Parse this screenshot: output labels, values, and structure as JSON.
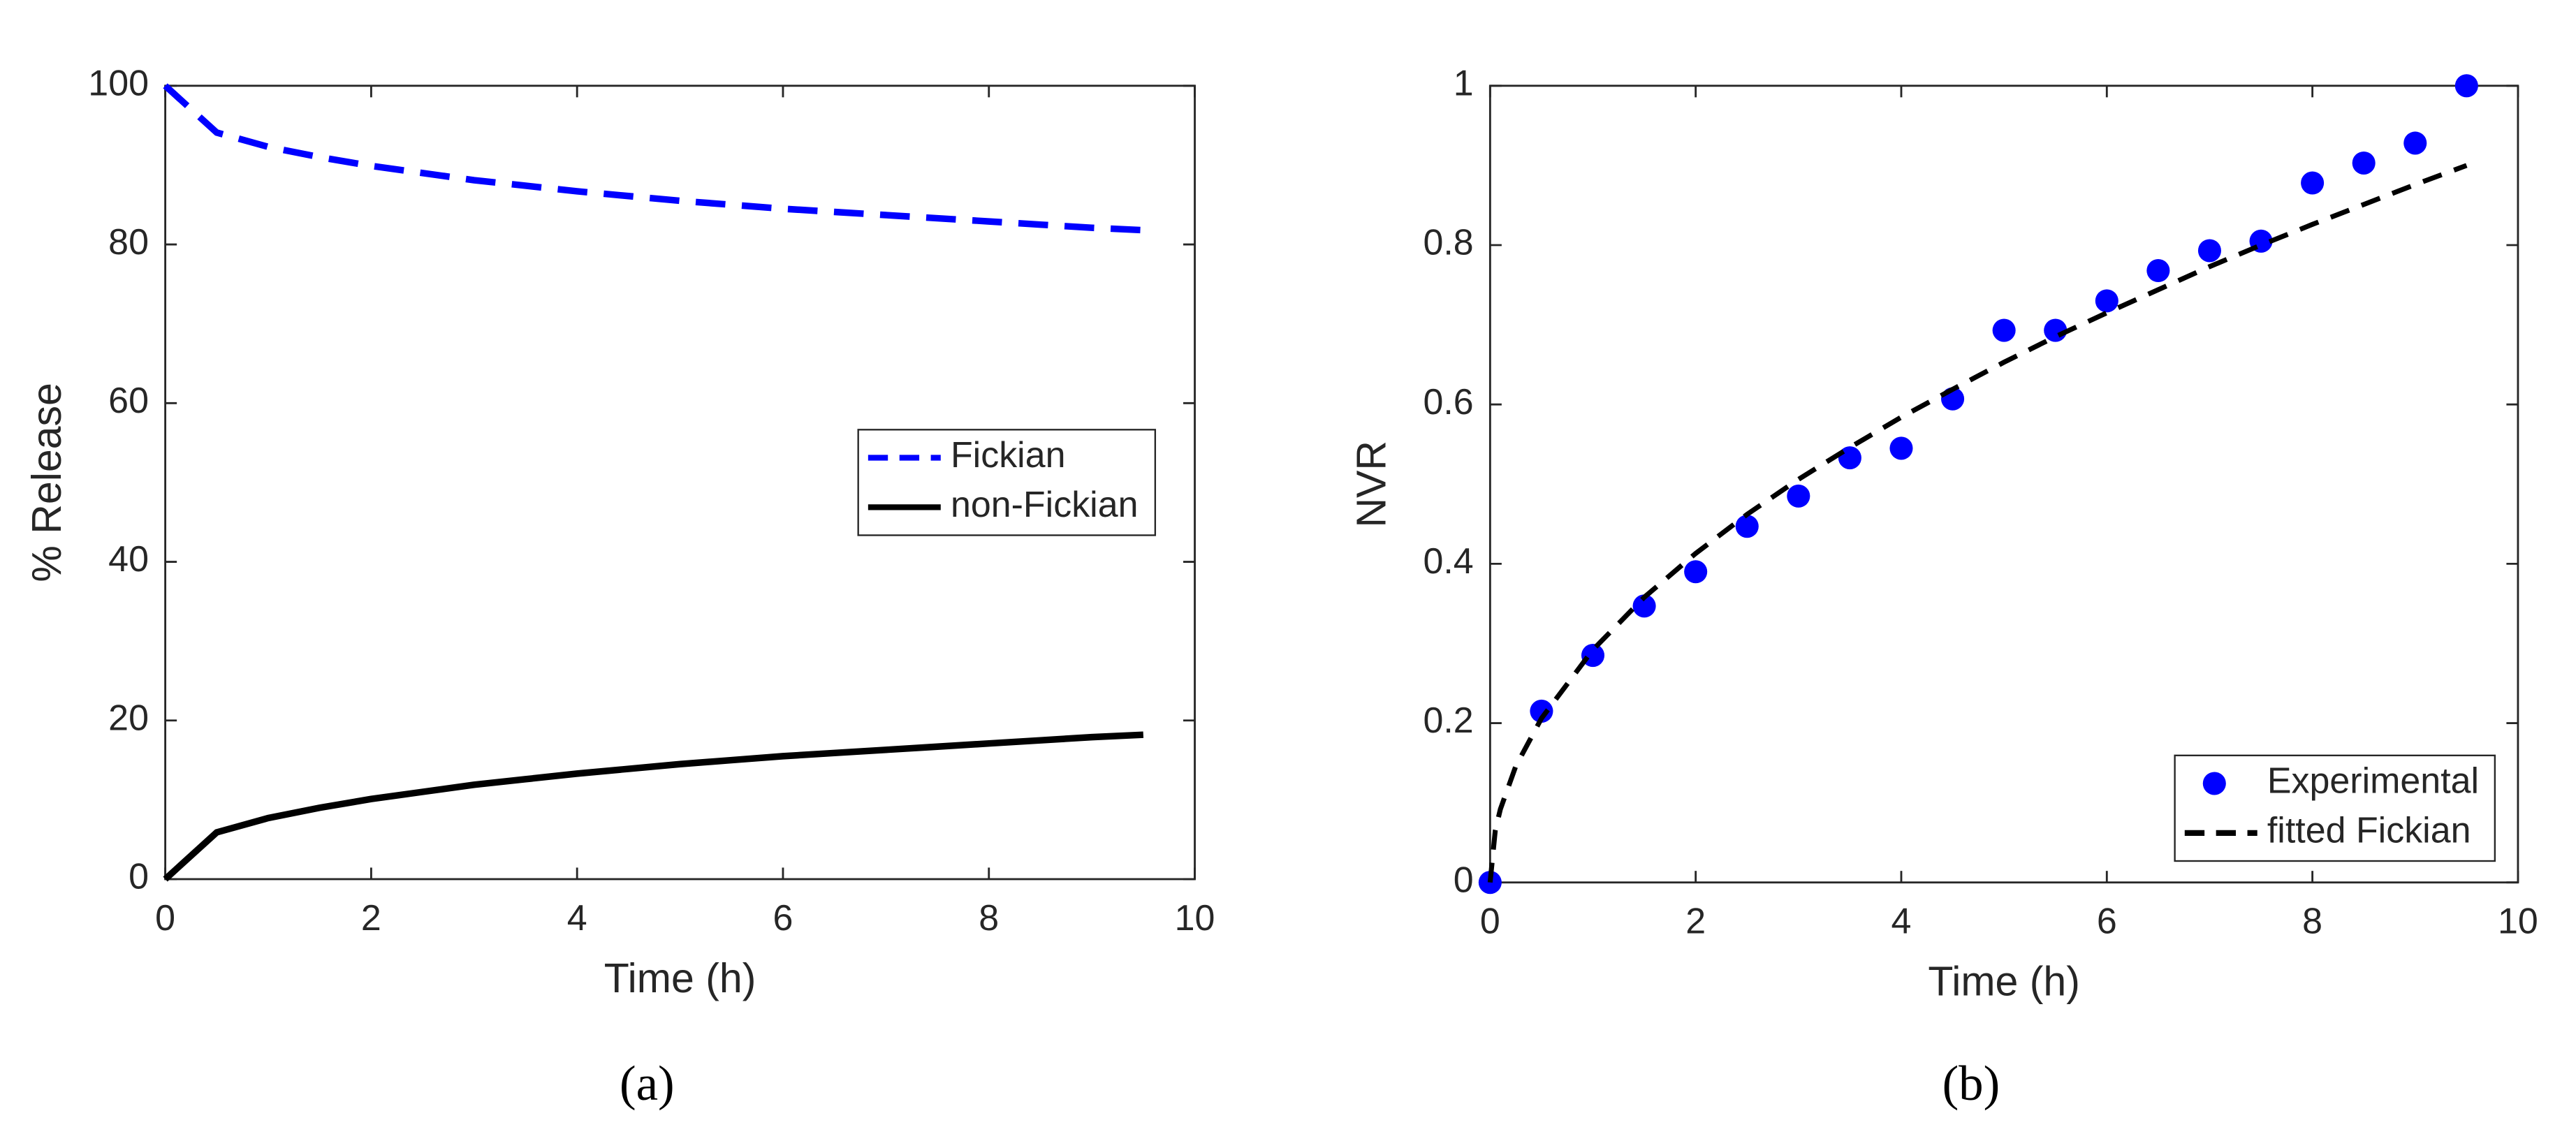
{
  "chart_data": [
    {
      "type": "line",
      "caption": "(a)",
      "xlabel": "Time (h)",
      "ylabel": "% Release",
      "x": [
        0,
        0.5,
        1,
        1.5,
        2,
        2.5,
        3,
        3.5,
        4,
        4.5,
        5,
        5.5,
        6,
        6.5,
        7,
        7.5,
        8,
        8.5,
        9,
        9.5
      ],
      "series": [
        {
          "name": "Fickian",
          "color": "#0000ff",
          "dashed": true,
          "values": [
            100,
            94.1,
            92.3,
            91.0,
            89.9,
            89.0,
            88.1,
            87.4,
            86.7,
            86.1,
            85.5,
            85.0,
            84.5,
            84.1,
            83.7,
            83.3,
            82.9,
            82.5,
            82.1,
            81.8
          ]
        },
        {
          "name": "non-Fickian",
          "color": "#000000",
          "dashed": false,
          "values": [
            0,
            5.9,
            7.7,
            9.0,
            10.1,
            11.0,
            11.9,
            12.6,
            13.3,
            13.9,
            14.5,
            15.0,
            15.5,
            15.9,
            16.3,
            16.7,
            17.1,
            17.5,
            17.9,
            18.2
          ]
        }
      ],
      "xlim": [
        0,
        10
      ],
      "xticks": [
        0,
        2,
        4,
        6,
        8,
        10
      ],
      "ylim": [
        0,
        100
      ],
      "yticks": [
        0,
        20,
        40,
        60,
        80,
        100
      ],
      "legend": "east"
    },
    {
      "type": "scatter",
      "caption": "(b)",
      "xlabel": "Time (h)",
      "ylabel": "NVR",
      "series": [
        {
          "name": "Experimental",
          "color": "#0000ff",
          "mark": "marker",
          "x": [
            0,
            0.5,
            1,
            1.5,
            2,
            2.5,
            3,
            3.5,
            4,
            4.5,
            5,
            5.5,
            6,
            6.5,
            7,
            7.5,
            8,
            8.5,
            9,
            9.5
          ],
          "values": [
            0,
            0.215,
            0.285,
            0.347,
            0.39,
            0.447,
            0.485,
            0.533,
            0.545,
            0.607,
            0.693,
            0.693,
            0.73,
            0.768,
            0.793,
            0.805,
            0.878,
            0.903,
            0.928,
            1
          ]
        },
        {
          "name": "fitted Fickian",
          "color": "#000000",
          "mark": "line",
          "dashed": true,
          "x": [
            0,
            0.05,
            0.1,
            0.25,
            0.5,
            1,
            1.5,
            2,
            2.5,
            3,
            3.5,
            4,
            4.5,
            5,
            5.5,
            6,
            6.5,
            7,
            7.5,
            8,
            8.5,
            9,
            9.5
          ],
          "values": [
            0,
            0.065,
            0.092,
            0.146,
            0.206,
            0.292,
            0.358,
            0.413,
            0.462,
            0.506,
            0.546,
            0.584,
            0.619,
            0.653,
            0.685,
            0.715,
            0.744,
            0.773,
            0.8,
            0.826,
            0.851,
            0.876,
            0.9
          ]
        }
      ],
      "xlim": [
        0,
        10
      ],
      "xticks": [
        0,
        2,
        4,
        6,
        8,
        10
      ],
      "ylim": [
        0,
        1
      ],
      "yticks": [
        0,
        0.2,
        0.4,
        0.6,
        0.8,
        1
      ],
      "legend": "lower right"
    }
  ]
}
